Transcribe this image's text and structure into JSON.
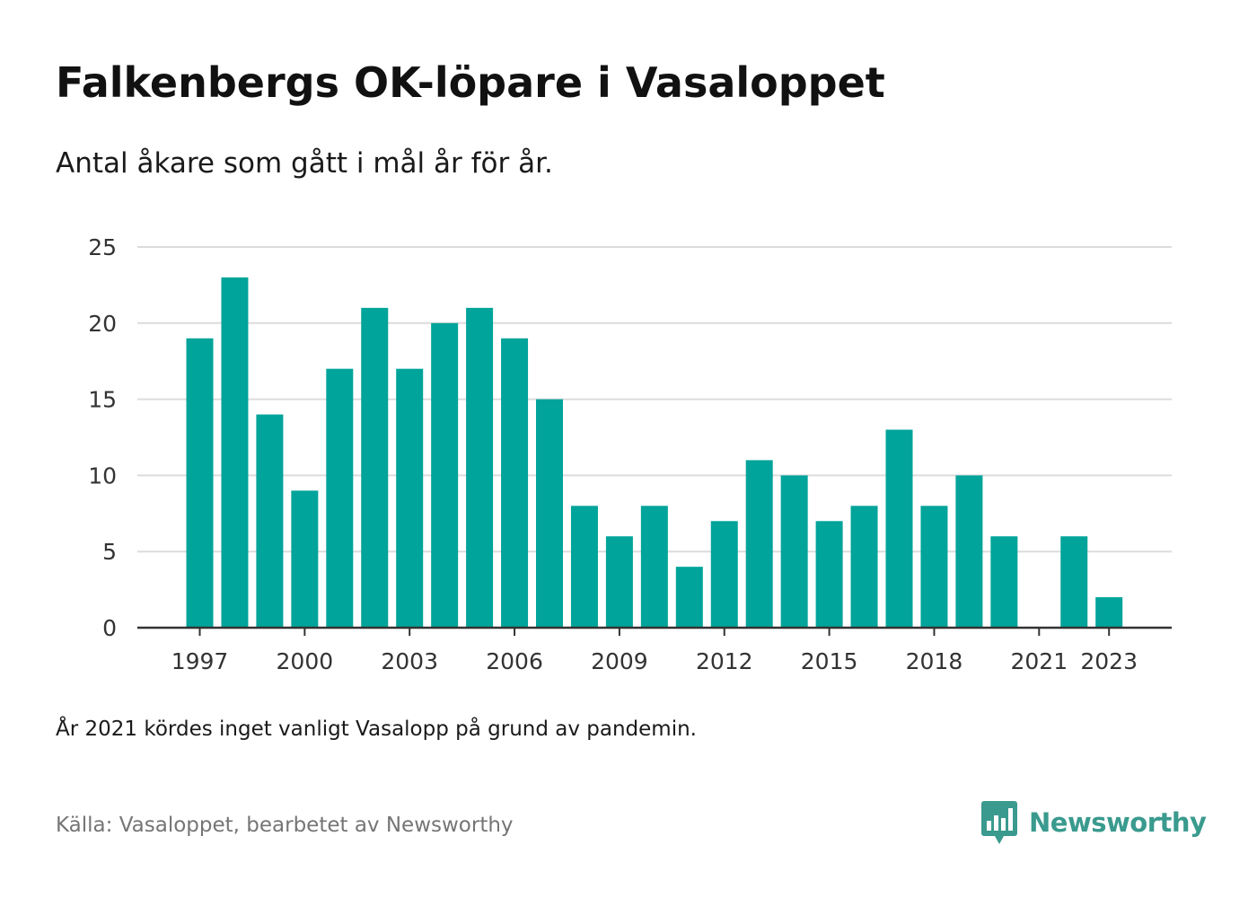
{
  "header": {
    "title": "Falkenbergs OK-löpare i Vasaloppet",
    "subtitle": "Antal åkare som gått i mål år för år."
  },
  "footer": {
    "note": "År 2021 kördes inget vanligt Vasalopp på grund av pandemin.",
    "source": "Källa: Vasaloppet, bearbetet av Newsworthy",
    "brand": "Newsworthy",
    "brand_icon": "bar-chart-speech-bubble-icon"
  },
  "colors": {
    "bar": "#00a49a",
    "grid": "#dcdcdc",
    "axis": "#333333",
    "brand": "#3a9a8e"
  },
  "chart_data": {
    "type": "bar",
    "title": "Falkenbergs OK-löpare i Vasaloppet",
    "subtitle": "Antal åkare som gått i mål år för år.",
    "xlabel": "",
    "ylabel": "",
    "ylim": [
      0,
      25
    ],
    "yticks": [
      0,
      5,
      10,
      15,
      20,
      25
    ],
    "xticks": [
      1997,
      2000,
      2003,
      2006,
      2009,
      2012,
      2015,
      2018,
      2021,
      2023
    ],
    "grid": true,
    "categories": [
      1997,
      1998,
      1999,
      2000,
      2001,
      2002,
      2003,
      2004,
      2005,
      2006,
      2007,
      2008,
      2009,
      2010,
      2011,
      2012,
      2013,
      2014,
      2015,
      2016,
      2017,
      2018,
      2019,
      2020,
      2021,
      2022,
      2023
    ],
    "values": [
      19,
      23,
      14,
      9,
      17,
      21,
      17,
      20,
      21,
      19,
      15,
      8,
      6,
      8,
      4,
      7,
      11,
      10,
      7,
      8,
      13,
      8,
      10,
      6,
      null,
      6,
      2
    ]
  }
}
